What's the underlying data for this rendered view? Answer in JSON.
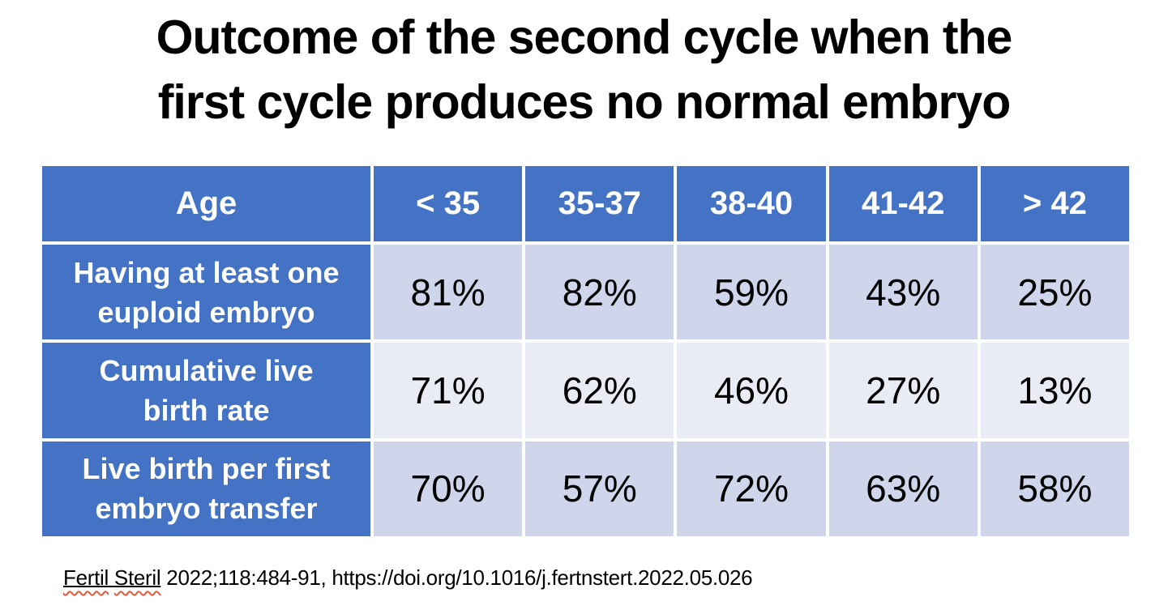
{
  "title": {
    "lines": [
      "Outcome of the second cycle when the",
      "first cycle produces no normal embryo"
    ]
  },
  "table": {
    "header": [
      "Age",
      "< 35",
      "35-37",
      "38-40",
      "41-42",
      "> 42"
    ],
    "rows": [
      {
        "label": "Having at least one euploid embryo",
        "label_lines": [
          "Having at least one",
          "euploid embryo"
        ],
        "values": [
          "81%",
          "82%",
          "59%",
          "43%",
          "25%"
        ]
      },
      {
        "label": "Cumulative live birth rate",
        "label_lines": [
          "Cumulative live",
          "birth rate"
        ],
        "values": [
          "71%",
          "62%",
          "46%",
          "27%",
          "13%"
        ]
      },
      {
        "label": "Live birth per first embryo transfer",
        "label_lines": [
          "Live birth per first",
          "embryo transfer"
        ],
        "values": [
          "70%",
          "57%",
          "72%",
          "63%",
          "58%"
        ]
      }
    ]
  },
  "citation": {
    "journal_words": [
      "Fertil",
      "Steril"
    ],
    "rest": " 2022;118:484-91, https://doi.org/10.1016/j.fertnstert.2022.05.026"
  },
  "colors": {
    "header_blue": "#4472C4",
    "band_dark": "#CFD5EA",
    "band_light": "#E9EBF5",
    "header_text": "#FFFFFF",
    "body_text": "#000000",
    "spellcheck_red": "#E05A3C"
  },
  "chart_data": {
    "type": "table",
    "title": "Outcome of the second cycle when the first cycle produces no normal embryo",
    "columns": [
      "Age",
      "< 35",
      "35-37",
      "38-40",
      "41-42",
      "> 42"
    ],
    "rows": [
      [
        "Having at least one euploid embryo",
        "81%",
        "82%",
        "59%",
        "43%",
        "25%"
      ],
      [
        "Cumulative live birth rate",
        "71%",
        "62%",
        "46%",
        "27%",
        "13%"
      ],
      [
        "Live birth per first embryo transfer",
        "70%",
        "57%",
        "72%",
        "63%",
        "58%"
      ]
    ],
    "source": "Fertil Steril 2022;118:484-91, https://doi.org/10.1016/j.fertnstert.2022.05.026"
  }
}
